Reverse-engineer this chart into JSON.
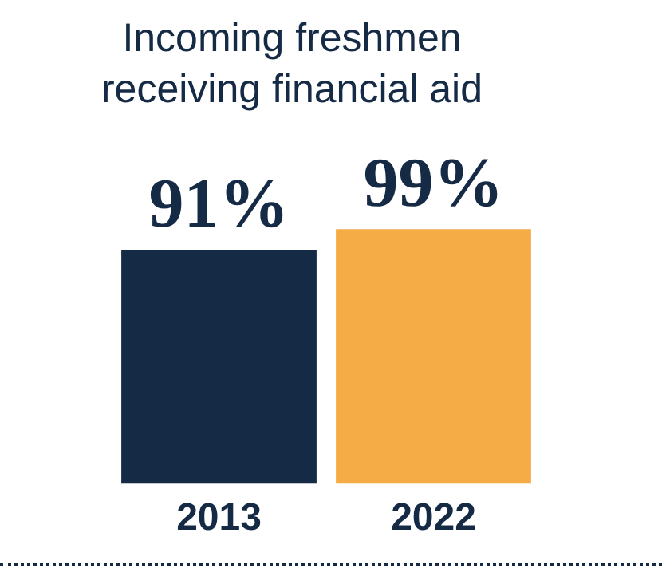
{
  "chart_data": {
    "type": "bar",
    "title": "Incoming freshmen receiving financial aid",
    "categories": [
      "2013",
      "2022"
    ],
    "values": [
      91,
      99
    ],
    "colors": [
      "#152a45",
      "#f5ac47"
    ],
    "value_labels": [
      "91%",
      "99%"
    ],
    "grid": false,
    "legend": false
  }
}
